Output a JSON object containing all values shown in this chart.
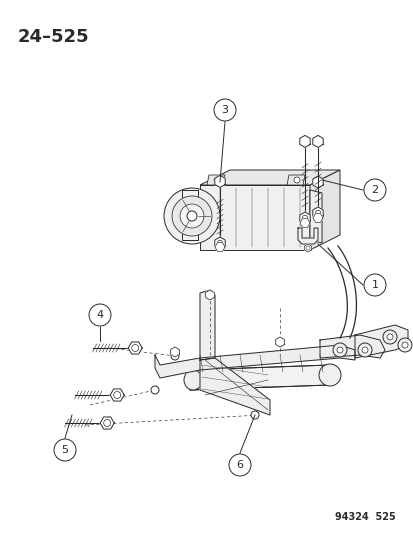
{
  "title": "24–525",
  "footer": "94324  525",
  "bg": "#ffffff",
  "lc": "#2a2a2a",
  "fig_w": 4.14,
  "fig_h": 5.33,
  "dpi": 100
}
